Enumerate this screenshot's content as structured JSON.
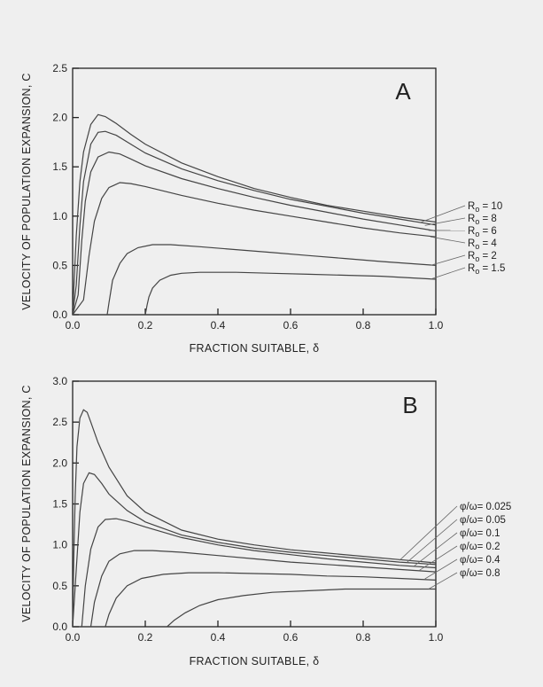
{
  "chart_data": [
    {
      "type": "line",
      "panel_label": "A",
      "xlabel": "FRACTION SUITABLE, δ",
      "ylabel": "VELOCITY OF POPULATION EXPANSION, C",
      "xlim": [
        0,
        1.0
      ],
      "ylim": [
        0,
        2.5
      ],
      "xticks": [
        "0.0",
        "0.2",
        "0.4",
        "0.6",
        "0.8",
        "1.0"
      ],
      "yticks": [
        "0.0",
        "0.5",
        "1.0",
        "1.5",
        "2.0",
        "2.5"
      ],
      "legend_placement": "right",
      "series": [
        {
          "name": "R0 = 10",
          "label": "R",
          "sub": "o",
          "rest": " = 10",
          "x": [
            0.0,
            0.005,
            0.01,
            0.02,
            0.03,
            0.05,
            0.07,
            0.09,
            0.12,
            0.16,
            0.2,
            0.3,
            0.4,
            0.5,
            0.6,
            0.7,
            0.8,
            0.9,
            1.0
          ],
          "y": [
            0.0,
            0.4,
            0.8,
            1.35,
            1.65,
            1.93,
            2.03,
            2.01,
            1.94,
            1.83,
            1.73,
            1.54,
            1.4,
            1.28,
            1.19,
            1.11,
            1.05,
            0.99,
            0.94
          ]
        },
        {
          "name": "R0 = 8",
          "label": "R",
          "sub": "o",
          "rest": " = 8",
          "x": [
            0.0,
            0.01,
            0.02,
            0.03,
            0.05,
            0.07,
            0.09,
            0.12,
            0.16,
            0.2,
            0.3,
            0.4,
            0.5,
            0.6,
            0.7,
            0.8,
            0.9,
            1.0
          ],
          "y": [
            0.0,
            0.3,
            0.9,
            1.35,
            1.73,
            1.85,
            1.86,
            1.82,
            1.73,
            1.64,
            1.48,
            1.36,
            1.26,
            1.17,
            1.1,
            1.03,
            0.97,
            0.91
          ]
        },
        {
          "name": "R0 = 6",
          "label": "R",
          "sub": "o",
          "rest": " = 6",
          "x": [
            0.0,
            0.015,
            0.025,
            0.035,
            0.05,
            0.07,
            0.1,
            0.13,
            0.16,
            0.2,
            0.3,
            0.4,
            0.5,
            0.6,
            0.7,
            0.8,
            0.9,
            1.0
          ],
          "y": [
            0.0,
            0.2,
            0.75,
            1.15,
            1.45,
            1.6,
            1.65,
            1.63,
            1.58,
            1.51,
            1.38,
            1.28,
            1.19,
            1.11,
            1.04,
            0.97,
            0.91,
            0.85
          ]
        },
        {
          "name": "R0 = 4",
          "label": "R",
          "sub": "o",
          "rest": " = 4",
          "x": [
            0.0,
            0.03,
            0.045,
            0.06,
            0.08,
            0.1,
            0.13,
            0.16,
            0.2,
            0.3,
            0.4,
            0.5,
            0.6,
            0.7,
            0.8,
            0.9,
            1.0
          ],
          "y": [
            0.0,
            0.15,
            0.6,
            0.95,
            1.18,
            1.29,
            1.34,
            1.33,
            1.3,
            1.21,
            1.13,
            1.06,
            1.0,
            0.94,
            0.88,
            0.83,
            0.79
          ]
        },
        {
          "name": "R0 = 2",
          "label": "R",
          "sub": "o",
          "rest": " = 2",
          "x": [
            0.095,
            0.1,
            0.11,
            0.13,
            0.15,
            0.18,
            0.22,
            0.27,
            0.35,
            0.45,
            0.55,
            0.65,
            0.75,
            0.85,
            1.0
          ],
          "y": [
            0.0,
            0.12,
            0.35,
            0.52,
            0.62,
            0.68,
            0.71,
            0.71,
            0.69,
            0.66,
            0.63,
            0.6,
            0.57,
            0.54,
            0.5
          ]
        },
        {
          "name": "R0 = 1.5",
          "label": "R",
          "sub": "o",
          "rest": " = 1.5",
          "x": [
            0.2,
            0.205,
            0.21,
            0.22,
            0.24,
            0.27,
            0.3,
            0.35,
            0.45,
            0.55,
            0.65,
            0.75,
            0.85,
            1.0
          ],
          "y": [
            0.0,
            0.1,
            0.18,
            0.27,
            0.35,
            0.4,
            0.42,
            0.43,
            0.43,
            0.42,
            0.41,
            0.4,
            0.39,
            0.36
          ]
        }
      ]
    },
    {
      "type": "line",
      "panel_label": "B",
      "xlabel": "FRACTION SUITABLE, δ",
      "ylabel": "VELOCITY OF POPULATION EXPANSION, C",
      "xlim": [
        0,
        1.0
      ],
      "ylim": [
        0,
        3.0
      ],
      "xticks": [
        "0.0",
        "0.2",
        "0.4",
        "0.6",
        "0.8",
        "1.0"
      ],
      "yticks": [
        "0.0",
        "0.5",
        "1.0",
        "1.5",
        "2.0",
        "2.5",
        "3.0"
      ],
      "legend_placement": "right",
      "series": [
        {
          "name": "φ/ω= 0.025",
          "label": "φ/ω= 0.025",
          "x": [
            0.0,
            0.003,
            0.007,
            0.012,
            0.02,
            0.03,
            0.04,
            0.05,
            0.07,
            0.1,
            0.15,
            0.2,
            0.3,
            0.4,
            0.5,
            0.6,
            0.7,
            0.8,
            0.9,
            1.0
          ],
          "y": [
            0.0,
            0.8,
            1.6,
            2.2,
            2.55,
            2.65,
            2.62,
            2.5,
            2.25,
            1.95,
            1.6,
            1.4,
            1.18,
            1.07,
            1.0,
            0.94,
            0.9,
            0.86,
            0.82,
            0.78
          ]
        },
        {
          "name": "φ/ω= 0.05",
          "label": "φ/ω= 0.05",
          "x": [
            0.0,
            0.01,
            0.02,
            0.03,
            0.045,
            0.06,
            0.08,
            0.1,
            0.15,
            0.2,
            0.3,
            0.4,
            0.5,
            0.6,
            0.7,
            0.8,
            0.9,
            1.0
          ],
          "y": [
            0.0,
            0.7,
            1.4,
            1.75,
            1.88,
            1.86,
            1.75,
            1.62,
            1.42,
            1.28,
            1.12,
            1.03,
            0.96,
            0.91,
            0.87,
            0.83,
            0.79,
            0.76
          ]
        },
        {
          "name": "φ/ω= 0.1",
          "label": "φ/ω= 0.1",
          "x": [
            0.025,
            0.035,
            0.05,
            0.07,
            0.09,
            0.12,
            0.15,
            0.2,
            0.3,
            0.4,
            0.5,
            0.6,
            0.7,
            0.8,
            0.9,
            1.0
          ],
          "y": [
            0.0,
            0.5,
            0.95,
            1.22,
            1.31,
            1.32,
            1.29,
            1.22,
            1.09,
            1.0,
            0.93,
            0.88,
            0.83,
            0.79,
            0.75,
            0.72
          ]
        },
        {
          "name": "φ/ω= 0.2",
          "label": "φ/ω= 0.2",
          "x": [
            0.05,
            0.06,
            0.08,
            0.1,
            0.13,
            0.17,
            0.22,
            0.3,
            0.4,
            0.5,
            0.6,
            0.7,
            0.8,
            0.9,
            1.0
          ],
          "y": [
            0.0,
            0.3,
            0.62,
            0.8,
            0.89,
            0.93,
            0.93,
            0.91,
            0.87,
            0.83,
            0.79,
            0.76,
            0.73,
            0.7,
            0.67
          ]
        },
        {
          "name": "φ/ω= 0.4",
          "label": "φ/ω= 0.4",
          "x": [
            0.09,
            0.1,
            0.12,
            0.15,
            0.19,
            0.25,
            0.32,
            0.4,
            0.5,
            0.6,
            0.7,
            0.8,
            0.9,
            1.0
          ],
          "y": [
            0.0,
            0.15,
            0.35,
            0.5,
            0.59,
            0.64,
            0.66,
            0.66,
            0.65,
            0.64,
            0.62,
            0.61,
            0.59,
            0.57
          ]
        },
        {
          "name": "φ/ω= 0.8",
          "label": "φ/ω= 0.8",
          "x": [
            0.26,
            0.28,
            0.31,
            0.35,
            0.4,
            0.47,
            0.55,
            0.65,
            0.75,
            0.85,
            1.0
          ],
          "y": [
            0.0,
            0.08,
            0.17,
            0.26,
            0.33,
            0.38,
            0.42,
            0.44,
            0.46,
            0.46,
            0.46
          ]
        }
      ]
    }
  ]
}
